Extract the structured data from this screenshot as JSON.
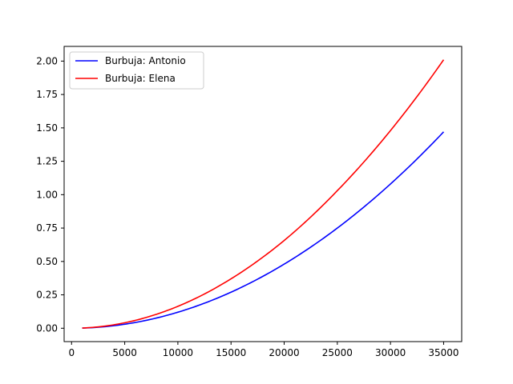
{
  "chart_data": {
    "type": "line",
    "title": "",
    "xlabel": "",
    "ylabel": "",
    "xlim": [
      -700,
      36700
    ],
    "ylim": [
      -0.1,
      2.11
    ],
    "xticks": [
      0,
      5000,
      10000,
      15000,
      20000,
      25000,
      30000,
      35000
    ],
    "xtick_labels": [
      "0",
      "5000",
      "10000",
      "15000",
      "20000",
      "25000",
      "30000",
      "35000"
    ],
    "yticks": [
      0.0,
      0.25,
      0.5,
      0.75,
      1.0,
      1.25,
      1.5,
      1.75,
      2.0
    ],
    "ytick_labels": [
      "0.00",
      "0.25",
      "0.50",
      "0.75",
      "1.00",
      "1.25",
      "1.50",
      "1.75",
      "2.00"
    ],
    "grid": false,
    "legend_position": "top-left",
    "x": [
      1000,
      5000,
      10000,
      15000,
      20000,
      25000,
      30000,
      35000
    ],
    "series": [
      {
        "name": "Burbuja: Antonio",
        "color": "#0000ff",
        "values": [
          0.0012,
          0.03,
          0.12,
          0.27,
          0.48,
          0.75,
          1.08,
          1.47
        ]
      },
      {
        "name": "Burbuja: Elena",
        "color": "#ff0000",
        "values": [
          0.0016,
          0.041,
          0.164,
          0.37,
          0.657,
          1.03,
          1.48,
          2.01
        ]
      }
    ]
  }
}
